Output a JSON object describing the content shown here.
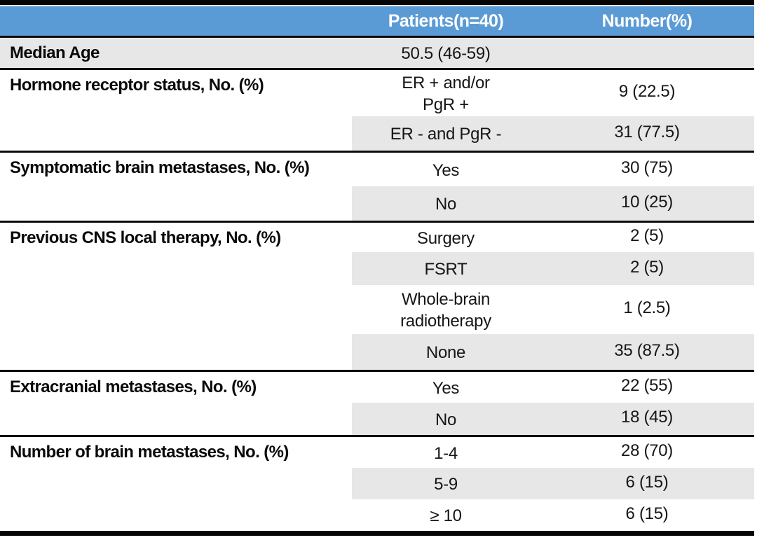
{
  "colors": {
    "header_blue": "#5b9bd5",
    "row_gray": "#e8e7e7",
    "border_black": "#050505",
    "header_text": "#ffffff",
    "body_text": "#161616"
  },
  "table": {
    "header": {
      "category": "",
      "patients": "Patients(n=40)",
      "number": "Number(%)"
    },
    "groups": [
      {
        "label": "Median Age",
        "rows": [
          {
            "sub": "50.5 (46-59)",
            "value": ""
          }
        ]
      },
      {
        "label": "Hormone receptor status, No. (%)",
        "rows": [
          {
            "sub": "ER + and/or\nPgR +",
            "value": "9 (22.5)"
          },
          {
            "sub": "ER - and PgR -",
            "value": "31 (77.5)"
          }
        ]
      },
      {
        "label": "Symptomatic brain metastases, No. (%)",
        "rows": [
          {
            "sub": "Yes",
            "value": "30 (75)"
          },
          {
            "sub": "No",
            "value": "10 (25)"
          }
        ]
      },
      {
        "label": "Previous CNS local therapy, No. (%)",
        "rows": [
          {
            "sub": "Surgery",
            "value": "2 (5)"
          },
          {
            "sub": "FSRT",
            "value": "2 (5)"
          },
          {
            "sub": "Whole-brain\nradiotherapy",
            "value": "1 (2.5)"
          },
          {
            "sub": "None",
            "value": "35 (87.5)"
          }
        ]
      },
      {
        "label": "Extracranial metastases, No. (%)",
        "rows": [
          {
            "sub": "Yes",
            "value": "22 (55)"
          },
          {
            "sub": "No",
            "value": "18 (45)"
          }
        ]
      },
      {
        "label": "Number of brain metastases, No. (%)",
        "rows": [
          {
            "sub": "1-4",
            "value": "28 (70)"
          },
          {
            "sub": "5-9",
            "value": "6 (15)"
          },
          {
            "sub": "≥ 10",
            "value": "6 (15)"
          }
        ]
      }
    ]
  }
}
